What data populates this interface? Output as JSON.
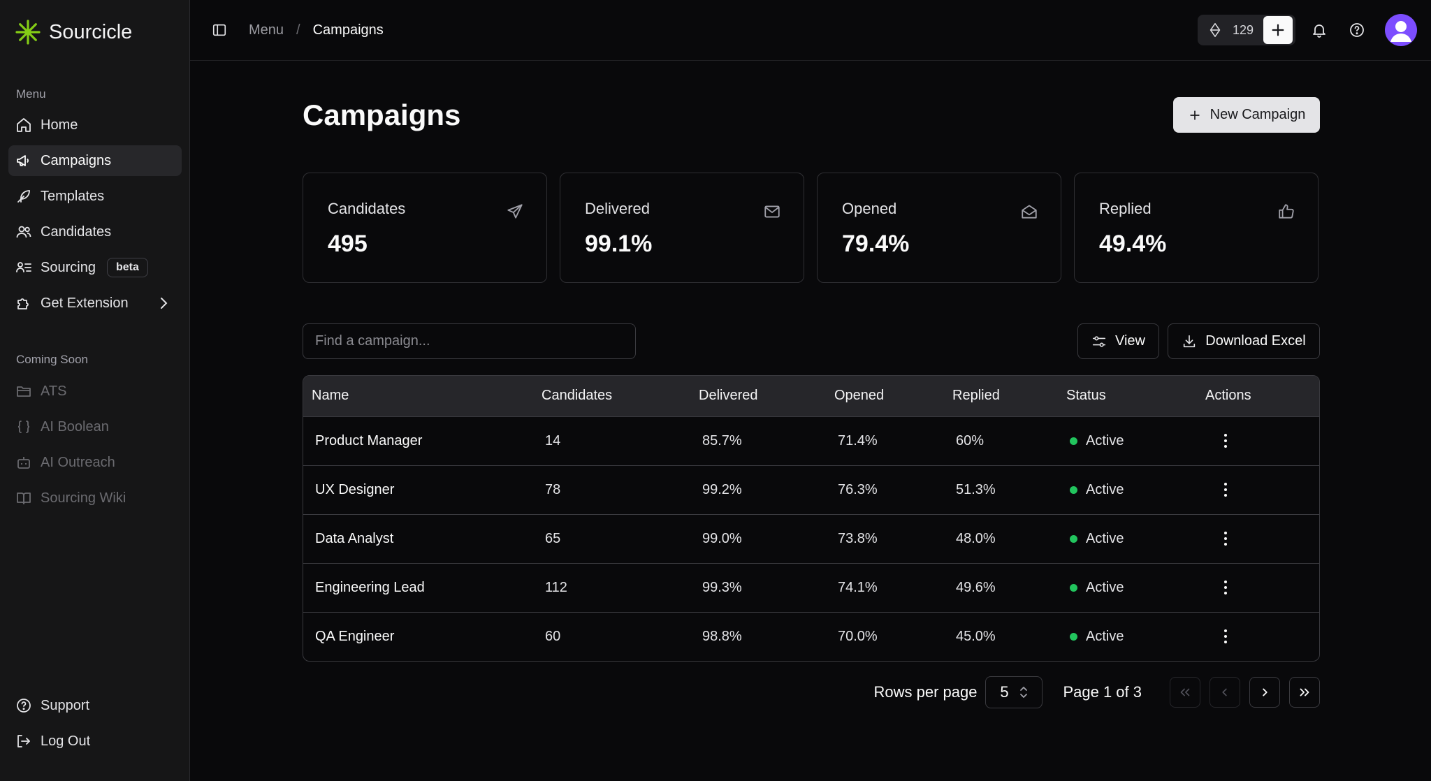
{
  "app": {
    "name": "Sourcicle",
    "accent": "#84cc16"
  },
  "sidebar": {
    "menu_label": "Menu",
    "items": [
      {
        "label": "Home",
        "icon": "home-icon"
      },
      {
        "label": "Campaigns",
        "icon": "megaphone-icon",
        "active": true
      },
      {
        "label": "Templates",
        "icon": "feather-icon"
      },
      {
        "label": "Candidates",
        "icon": "users-icon"
      },
      {
        "label": "Sourcing",
        "icon": "user-list-icon",
        "badge": "beta"
      },
      {
        "label": "Get Extension",
        "icon": "puzzle-icon",
        "chevron": true
      }
    ],
    "coming_soon_label": "Coming Soon",
    "coming_soon": [
      {
        "label": "ATS",
        "icon": "folder-icon"
      },
      {
        "label": "AI Boolean",
        "icon": "braces-icon"
      },
      {
        "label": "AI Outreach",
        "icon": "bot-icon"
      },
      {
        "label": "Sourcing Wiki",
        "icon": "book-icon"
      }
    ],
    "footer": [
      {
        "label": "Support",
        "icon": "help-circle-icon"
      },
      {
        "label": "Log Out",
        "icon": "logout-icon"
      }
    ]
  },
  "topbar": {
    "breadcrumb": [
      "Menu",
      "Campaigns"
    ],
    "credits": "129"
  },
  "page": {
    "title": "Campaigns",
    "new_button": "New Campaign",
    "stats": [
      {
        "label": "Candidates",
        "value": "495",
        "icon": "send-icon"
      },
      {
        "label": "Delivered",
        "value": "99.1%",
        "icon": "mail-icon"
      },
      {
        "label": "Opened",
        "value": "79.4%",
        "icon": "mail-open-icon"
      },
      {
        "label": "Replied",
        "value": "49.4%",
        "icon": "thumbs-up-icon"
      }
    ],
    "search_placeholder": "Find a campaign...",
    "view_button": "View",
    "download_button": "Download Excel"
  },
  "table": {
    "columns": [
      "Name",
      "Candidates",
      "Delivered",
      "Opened",
      "Replied",
      "Status",
      "Actions"
    ],
    "rows": [
      {
        "name": "Product Manager",
        "candidates": "14",
        "delivered": "85.7%",
        "opened": "71.4%",
        "replied": "60%",
        "status": "Active"
      },
      {
        "name": "UX Designer",
        "candidates": "78",
        "delivered": "99.2%",
        "opened": "76.3%",
        "replied": "51.3%",
        "status": "Active"
      },
      {
        "name": "Data Analyst",
        "candidates": "65",
        "delivered": "99.0%",
        "opened": "73.8%",
        "replied": "48.0%",
        "status": "Active"
      },
      {
        "name": "Engineering Lead",
        "candidates": "112",
        "delivered": "99.3%",
        "opened": "74.1%",
        "replied": "49.6%",
        "status": "Active"
      },
      {
        "name": "QA Engineer",
        "candidates": "60",
        "delivered": "98.8%",
        "opened": "70.0%",
        "replied": "45.0%",
        "status": "Active"
      }
    ]
  },
  "pagination": {
    "rows_label": "Rows per page",
    "rows_value": "5",
    "page_info": "Page 1 of 3"
  }
}
